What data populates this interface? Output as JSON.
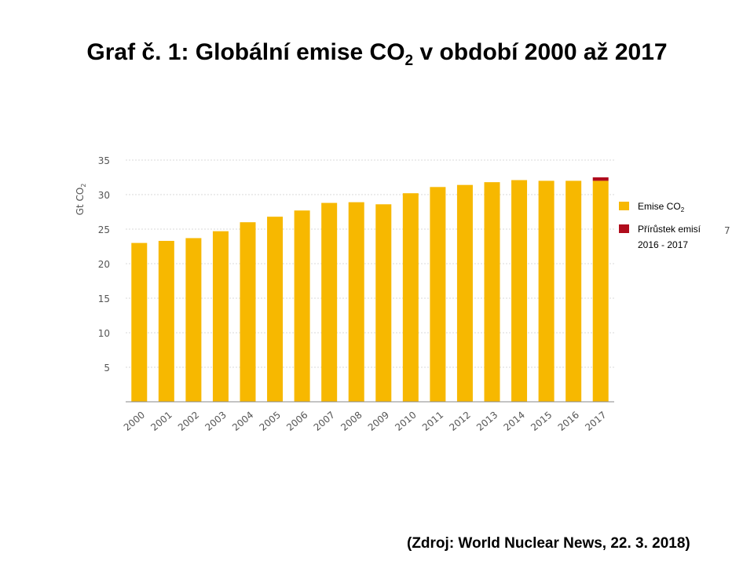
{
  "slide": {
    "title_main": "Graf č. 1: Globální emise CO",
    "title_sub": "2",
    "title_end": " v období 2000 až 2017",
    "source": "(Zdroj: World Nuclear News, 22. 3. 2018)",
    "stray_glyph": "7"
  },
  "chart_data": {
    "type": "bar",
    "title": "",
    "ylabel": "Gt CO",
    "ylabel_sub": "2",
    "xlabel": "",
    "ylim": [
      0,
      35
    ],
    "yticks": [
      5,
      10,
      15,
      20,
      25,
      30,
      35
    ],
    "grid": true,
    "legend_position": "right",
    "categories": [
      "2000",
      "2001",
      "2002",
      "2003",
      "2004",
      "2005",
      "2006",
      "2007",
      "2008",
      "2009",
      "2010",
      "2011",
      "2012",
      "2013",
      "2014",
      "2015",
      "2016",
      "2017"
    ],
    "series": [
      {
        "name": "Emise CO2",
        "legend_label": "Emise CO",
        "legend_sub": "2",
        "color": "#f7b800",
        "values": [
          23.0,
          23.3,
          23.7,
          24.7,
          26.0,
          26.8,
          27.7,
          28.8,
          28.9,
          28.6,
          30.2,
          31.1,
          31.4,
          31.8,
          32.1,
          32.0,
          32.0,
          32.0
        ]
      },
      {
        "name": "Přírůstek emisí 2016 - 2017",
        "legend_label_1": "Přírůstek emisí",
        "legend_label_2": "2016 - 2017",
        "color": "#b00c1c",
        "values": [
          0,
          0,
          0,
          0,
          0,
          0,
          0,
          0,
          0,
          0,
          0,
          0,
          0,
          0,
          0,
          0,
          0,
          0.5
        ]
      }
    ]
  }
}
